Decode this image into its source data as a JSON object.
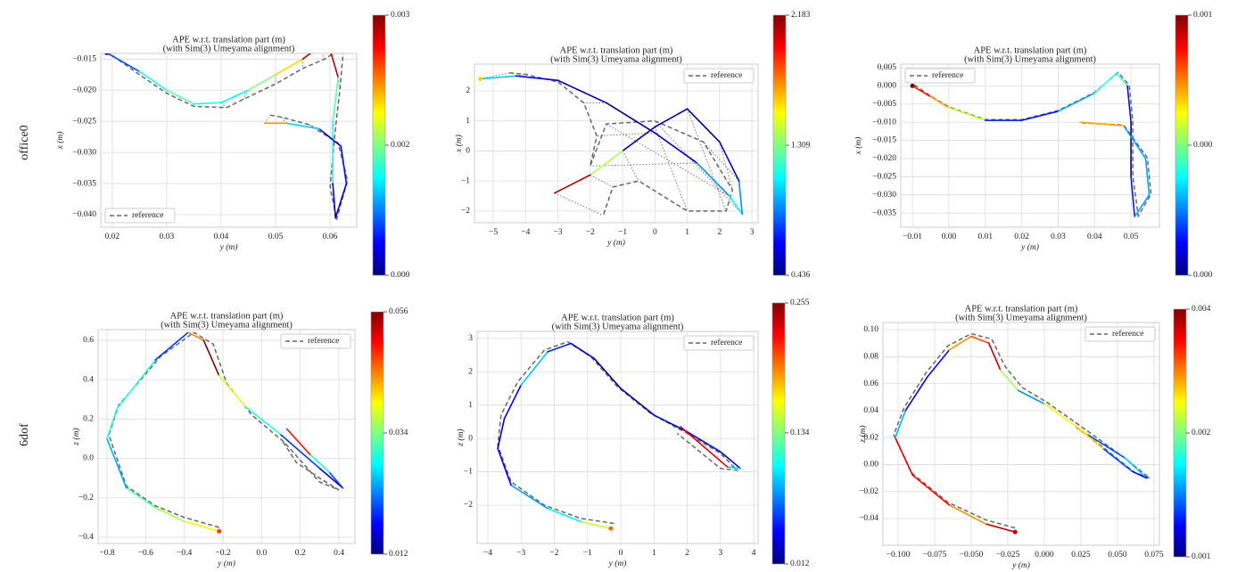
{
  "row_labels": [
    "office0",
    "6dof"
  ],
  "chart_data": [
    {
      "type": "trajectory",
      "title": "APE w.r.t. translation part (m)",
      "subtitle": "(with Sim(3) Umeyama alignment)",
      "xlabel": "y (m)",
      "ylabel": "x (m)",
      "xlim": [
        0.0179,
        0.0649
      ],
      "ylim": [
        -0.042,
        -0.0141
      ],
      "xticks": [
        0.02,
        0.03,
        0.04,
        0.05,
        0.06
      ],
      "yticks": [
        {
          "value": -0.015,
          "label": "−0.015"
        },
        {
          "value": -0.02,
          "label": "−0.020"
        },
        {
          "value": -0.025,
          "label": "−0.025"
        },
        {
          "value": -0.03,
          "label": "−0.030"
        },
        {
          "value": -0.035,
          "label": "−0.035"
        },
        {
          "value": -0.04,
          "label": "−0.040"
        }
      ],
      "grid": true,
      "legend": "lower left",
      "connectors": true,
      "reference": {
        "name": "reference",
        "color": "#666666",
        "x": [
          0.019,
          0.025,
          0.03,
          0.035,
          0.041,
          0.044,
          0.05,
          0.055,
          0.059,
          0.0625,
          0.0618,
          0.061,
          0.06,
          0.0612,
          0.0632,
          0.0615,
          0.056,
          0.051,
          0.049
        ],
        "y": [
          -0.0138,
          -0.0175,
          -0.0205,
          -0.0226,
          -0.0228,
          -0.0215,
          -0.019,
          -0.0165,
          -0.015,
          -0.013,
          -0.02,
          -0.026,
          -0.0355,
          -0.0408,
          -0.0345,
          -0.0285,
          -0.0255,
          -0.0243,
          -0.024
        ]
      },
      "trajectory": {
        "colormap": "jet",
        "x": [
          0.019,
          0.025,
          0.03,
          0.035,
          0.04,
          0.045,
          0.05,
          0.055,
          0.058,
          0.06,
          0.0615,
          0.0605,
          0.0605,
          0.061,
          0.063,
          0.062,
          0.058,
          0.052,
          0.048
        ],
        "y": [
          -0.014,
          -0.017,
          -0.02,
          -0.0222,
          -0.022,
          -0.02,
          -0.0175,
          -0.015,
          -0.013,
          -0.0135,
          -0.018,
          -0.025,
          -0.035,
          -0.0405,
          -0.035,
          -0.029,
          -0.0262,
          -0.0253,
          -0.0253
        ],
        "error": [
          0.0002,
          0.0006,
          0.0012,
          0.0014,
          0.0012,
          0.0011,
          0.0015,
          0.002,
          0.0029,
          0.003,
          0.0028,
          0.0014,
          0.0012,
          0.0003,
          0.0002,
          0.0004,
          0.0002,
          0.001,
          0.0022
        ]
      },
      "colorbar": {
        "lim": [
          0,
          0.003
        ],
        "ticks": [
          {
            "value": 0,
            "label": "0.000"
          },
          {
            "value": 0.0015,
            "label": "0.002"
          },
          0.003
        ]
      }
    },
    {
      "type": "trajectory",
      "title": "APE w.r.t. translation part (m)",
      "subtitle": "(with Sim(3) Umeyama alignment)",
      "xlabel": "y (m)",
      "ylabel": "x (m)",
      "xlim": [
        -5.58,
        3.19
      ],
      "ylim": [
        -2.39,
        2.89
      ],
      "xticks": [
        {
          "value": -5,
          "label": "−5"
        },
        {
          "value": -4,
          "label": "−4"
        },
        {
          "value": -3,
          "label": "−3"
        },
        {
          "value": -2,
          "label": "−2"
        },
        {
          "value": -1,
          "label": "−1"
        },
        0,
        1,
        2,
        3
      ],
      "yticks": [
        {
          "value": -2,
          "label": "−2"
        },
        {
          "value": -1,
          "label": "−1"
        },
        0,
        1,
        2
      ],
      "grid": true,
      "legend": "upper right",
      "connectors": true,
      "reference": {
        "name": "reference",
        "color": "#666666",
        "x": [
          -4.5,
          -4.0,
          -3.0,
          -2.2,
          -1.8,
          -2.0,
          -1.5,
          0.0,
          1.5,
          2.4,
          2.2,
          1.0,
          -0.5,
          -1.3,
          -1.6
        ],
        "y": [
          2.6,
          2.55,
          2.3,
          1.6,
          0.5,
          -0.5,
          0.9,
          1.0,
          0.3,
          -1.3,
          -2.0,
          -2.0,
          -1.0,
          -1.2,
          -2.15
        ]
      },
      "trajectory": {
        "colormap": "jet",
        "x": [
          -5.4,
          -4.3,
          -3.0,
          -1.5,
          0.0,
          1.3,
          2.3,
          2.7,
          2.6,
          2.0,
          1.0,
          0.0,
          -1.0,
          -2.0,
          -3.1
        ],
        "y": [
          2.4,
          2.5,
          2.35,
          1.6,
          0.6,
          -0.4,
          -1.5,
          -2.1,
          -1.0,
          0.3,
          1.4,
          0.8,
          0.0,
          -0.8,
          -1.4
        ],
        "error": [
          1.6,
          1.0,
          0.6,
          0.5,
          0.45,
          0.55,
          0.9,
          1.1,
          0.9,
          0.6,
          0.45,
          0.5,
          0.5,
          1.4,
          2.1
        ]
      },
      "colorbar": {
        "lim": [
          0.436,
          2.183
        ],
        "ticks": [
          0.436,
          1.309,
          2.183
        ]
      }
    },
    {
      "type": "trajectory",
      "title": "APE w.r.t. translation part (m)",
      "subtitle": "(with Sim(3) Umeyama alignment)",
      "xlabel": "y (m)",
      "ylabel": "x (m)",
      "xlim": [
        -0.0132,
        0.0578
      ],
      "ylim": [
        -0.0389,
        0.00598
      ],
      "xticks": [
        {
          "value": -0.01,
          "label": "−0.01"
        },
        {
          "value": 0,
          "label": "0.00"
        },
        0.01,
        0.02,
        0.03,
        0.04,
        0.05
      ],
      "yticks": [
        0.005,
        {
          "value": 0,
          "label": "0.000"
        },
        {
          "value": -0.005,
          "label": "−0.005"
        },
        {
          "value": -0.01,
          "label": "−0.010"
        },
        {
          "value": -0.015,
          "label": "−0.015"
        },
        {
          "value": -0.02,
          "label": "−0.020"
        },
        {
          "value": -0.025,
          "label": "−0.025"
        },
        {
          "value": -0.03,
          "label": "−0.030"
        },
        {
          "value": -0.035,
          "label": "−0.035"
        }
      ],
      "grid": true,
      "legend": "upper left",
      "connectors": false,
      "reference": {
        "name": "reference",
        "color": "#666666",
        "x": [
          -0.0095,
          -0.005,
          0.0,
          0.01,
          0.02,
          0.03,
          0.04,
          0.0465,
          0.0495,
          0.0505,
          0.0505,
          0.052,
          0.0555,
          0.0545,
          0.048,
          0.0365
        ],
        "y": [
          0.0003,
          -0.0028,
          -0.0058,
          -0.0093,
          -0.0093,
          -0.0068,
          -0.0018,
          0.0037,
          0.0002,
          -0.0098,
          -0.0248,
          -0.0358,
          -0.0298,
          -0.0198,
          -0.0108,
          -0.0102
        ]
      },
      "trajectory": {
        "colormap": "jet",
        "x": [
          -0.01,
          -0.005,
          0.0,
          0.01,
          0.02,
          0.03,
          0.04,
          0.046,
          0.049,
          0.05,
          0.05,
          0.051,
          0.055,
          0.054,
          0.048,
          0.036
        ],
        "y": [
          0.0,
          -0.003,
          -0.006,
          -0.0095,
          -0.0095,
          -0.007,
          -0.002,
          0.0035,
          0.0,
          -0.01,
          -0.025,
          -0.036,
          -0.03,
          -0.02,
          -0.011,
          -0.01
        ],
        "error": [
          0.0008,
          0.0007,
          0.0006,
          0.0005,
          0.0002,
          0.0002,
          0.0003,
          0.0004,
          0.0004,
          0.0002,
          0.0001,
          0.0002,
          0.0003,
          0.0003,
          0.0003,
          0.0006
        ]
      },
      "colorbar": {
        "lim": [
          0.0001,
          0.0008
        ],
        "ticks": [
          {
            "value": 0.0001,
            "label": "0.000"
          },
          {
            "value": 0.00045,
            "label": "0.000"
          },
          {
            "value": 0.0008,
            "label": "0.001"
          }
        ]
      }
    },
    {
      "type": "trajectory",
      "title": "APE w.r.t. translation part (m)",
      "subtitle": "(with Sim(3) Umeyama alignment)",
      "xlabel": "y (m)",
      "ylabel": "z (m)",
      "xlim": [
        -0.846,
        0.483
      ],
      "ylim": [
        -0.432,
        0.654
      ],
      "xticks": [
        {
          "value": -0.8,
          "label": "−0.8"
        },
        {
          "value": -0.6,
          "label": "−0.6"
        },
        {
          "value": -0.4,
          "label": "−0.4"
        },
        {
          "value": -0.2,
          "label": "−0.2"
        },
        {
          "value": 0,
          "label": "0.0"
        },
        0.2,
        0.4
      ],
      "yticks": [
        {
          "value": -0.4,
          "label": "−0.4"
        },
        {
          "value": -0.2,
          "label": "−0.2"
        },
        {
          "value": 0,
          "label": "0.0"
        },
        0.2,
        0.4,
        0.6
      ],
      "grid": true,
      "legend": "upper right",
      "connectors": false,
      "reference": {
        "name": "reference",
        "color": "#666666",
        "x": [
          -0.22,
          -0.4,
          -0.55,
          -0.7,
          -0.79,
          -0.74,
          -0.52,
          -0.35,
          -0.25,
          -0.18,
          -0.05,
          0.12,
          0.3,
          0.4,
          0.3,
          0.18,
          0.1
        ],
        "y": [
          -0.35,
          -0.3,
          -0.24,
          -0.14,
          0.12,
          0.27,
          0.52,
          0.64,
          0.58,
          0.38,
          0.22,
          0.08,
          -0.12,
          -0.16,
          -0.1,
          -0.02,
          0.1
        ]
      },
      "trajectory": {
        "colormap": "jet",
        "x": [
          -0.22,
          -0.4,
          -0.55,
          -0.7,
          -0.8,
          -0.75,
          -0.55,
          -0.38,
          -0.3,
          -0.22,
          -0.08,
          0.1,
          0.3,
          0.42,
          0.35,
          0.25,
          0.13
        ],
        "y": [
          -0.37,
          -0.32,
          -0.25,
          -0.15,
          0.1,
          0.25,
          0.5,
          0.64,
          0.6,
          0.42,
          0.26,
          0.12,
          -0.05,
          -0.15,
          -0.07,
          0.02,
          0.15
        ],
        "error": [
          0.048,
          0.04,
          0.036,
          0.032,
          0.025,
          0.03,
          0.03,
          0.02,
          0.045,
          0.056,
          0.038,
          0.03,
          0.02,
          0.015,
          0.02,
          0.03,
          0.05
        ]
      },
      "colorbar": {
        "lim": [
          0.012,
          0.056
        ],
        "ticks": [
          0.012,
          0.034,
          0.056
        ]
      }
    },
    {
      "type": "trajectory",
      "title": "APE w.r.t. translation part (m)",
      "subtitle": "(with Sim(3) Umeyama alignment)",
      "xlabel": "y (m)",
      "ylabel": "z (m)",
      "xlim": [
        -4.32,
        4.13
      ],
      "ylim": [
        -3.15,
        3.21
      ],
      "xticks": [
        {
          "value": -4,
          "label": "−4"
        },
        {
          "value": -3,
          "label": "−3"
        },
        {
          "value": -2,
          "label": "−2"
        },
        {
          "value": -1,
          "label": "−1"
        },
        0,
        1,
        2,
        3,
        4
      ],
      "yticks": [
        {
          "value": -2,
          "label": "−2"
        },
        {
          "value": -1,
          "label": "−1"
        },
        0,
        1,
        2,
        3
      ],
      "grid": true,
      "legend": "upper right",
      "connectors": false,
      "reference": {
        "name": "reference",
        "color": "#666666",
        "x": [
          -0.2,
          -1.2,
          -2.3,
          -3.3,
          -3.7,
          -3.6,
          -3.1,
          -2.3,
          -1.6,
          -0.9,
          -0.1,
          0.9,
          2.0,
          3.0,
          3.5,
          3.0,
          1.7
        ],
        "y": [
          -2.55,
          -2.4,
          -2.0,
          -1.3,
          -0.2,
          0.7,
          1.7,
          2.65,
          2.9,
          2.45,
          1.55,
          0.75,
          0.15,
          -0.45,
          -0.95,
          -0.9,
          0.15
        ]
      },
      "trajectory": {
        "colormap": "jet",
        "x": [
          -0.3,
          -1.2,
          -2.2,
          -3.3,
          -3.7,
          -3.5,
          -3.0,
          -2.2,
          -1.5,
          -0.8,
          0.0,
          1.0,
          2.0,
          3.0,
          3.6,
          3.2,
          1.8
        ],
        "y": [
          -2.7,
          -2.5,
          -2.1,
          -1.4,
          -0.3,
          0.6,
          1.6,
          2.6,
          2.85,
          2.4,
          1.5,
          0.7,
          0.2,
          -0.4,
          -0.9,
          -0.85,
          0.35
        ],
        "error": [
          0.2,
          0.15,
          0.1,
          0.08,
          0.04,
          0.03,
          0.04,
          0.09,
          0.05,
          0.03,
          0.02,
          0.02,
          0.03,
          0.04,
          0.03,
          0.09,
          0.23
        ]
      },
      "colorbar": {
        "lim": [
          0.012,
          0.255
        ],
        "ticks": [
          0.012,
          0.134,
          0.255
        ]
      }
    },
    {
      "type": "trajectory",
      "title": "APE w.r.t. translation part (m)",
      "subtitle": "(with Sim(3) Umeyama alignment)",
      "xlabel": "y (m)",
      "ylabel": "z (m)",
      "xlim": [
        -0.1104,
        0.0787
      ],
      "ylim": [
        -0.0598,
        0.1053
      ],
      "xticks": [
        {
          "value": -0.1,
          "label": "−0.100"
        },
        {
          "value": -0.075,
          "label": "−0.075"
        },
        {
          "value": -0.05,
          "label": "−0.050"
        },
        {
          "value": -0.025,
          "label": "−0.025"
        },
        {
          "value": 0,
          "label": "0.000"
        },
        0.025,
        {
          "value": 0.05,
          "label": "0.050"
        },
        0.075
      ],
      "yticks": [
        {
          "value": 0.1,
          "label": "0.10"
        },
        0.08,
        0.06,
        0.04,
        0.02,
        {
          "value": 0,
          "label": "0.00"
        },
        {
          "value": -0.02,
          "label": "−0.02"
        },
        {
          "value": -0.04,
          "label": "−0.04"
        }
      ],
      "grid": true,
      "legend": "upper right",
      "connectors": false,
      "reference": {
        "name": "reference",
        "color": "#666666",
        "x": [
          -0.02,
          -0.04,
          -0.066,
          -0.091,
          -0.103,
          -0.096,
          -0.081,
          -0.066,
          -0.05,
          -0.036,
          -0.027,
          -0.015,
          0.002,
          0.032,
          0.056,
          0.072,
          0.062,
          0.04,
          0.02
        ],
        "y": [
          -0.047,
          -0.041,
          -0.028,
          -0.006,
          0.022,
          0.042,
          0.068,
          0.088,
          0.097,
          0.093,
          0.073,
          0.057,
          0.046,
          0.023,
          0.004,
          -0.01,
          -0.006,
          0.013,
          0.029
        ]
      },
      "trajectory": {
        "colormap": "jet",
        "x": [
          -0.02,
          -0.04,
          -0.065,
          -0.09,
          -0.102,
          -0.095,
          -0.08,
          -0.065,
          -0.05,
          -0.038,
          -0.03,
          -0.018,
          0.0,
          0.03,
          0.055,
          0.07,
          0.06,
          0.04,
          0.022
        ],
        "y": [
          -0.05,
          -0.044,
          -0.03,
          -0.008,
          0.02,
          0.04,
          0.065,
          0.085,
          0.095,
          0.09,
          0.07,
          0.055,
          0.045,
          0.022,
          0.005,
          -0.01,
          -0.005,
          0.012,
          0.028
        ],
        "error": [
          0.0034,
          0.0034,
          0.0028,
          0.0032,
          0.0033,
          0.0015,
          0.0009,
          0.001,
          0.0028,
          0.003,
          0.0034,
          0.0022,
          0.0014,
          0.0025,
          0.0012,
          0.0016,
          0.001,
          0.0012,
          0.0026
        ]
      },
      "colorbar": {
        "lim": [
          0.0006,
          0.0036
        ],
        "ticks": [
          {
            "value": 0.0006,
            "label": "0.001"
          },
          {
            "value": 0.0021,
            "label": "0.002"
          },
          {
            "value": 0.0036,
            "label": "0.004"
          }
        ]
      }
    }
  ]
}
